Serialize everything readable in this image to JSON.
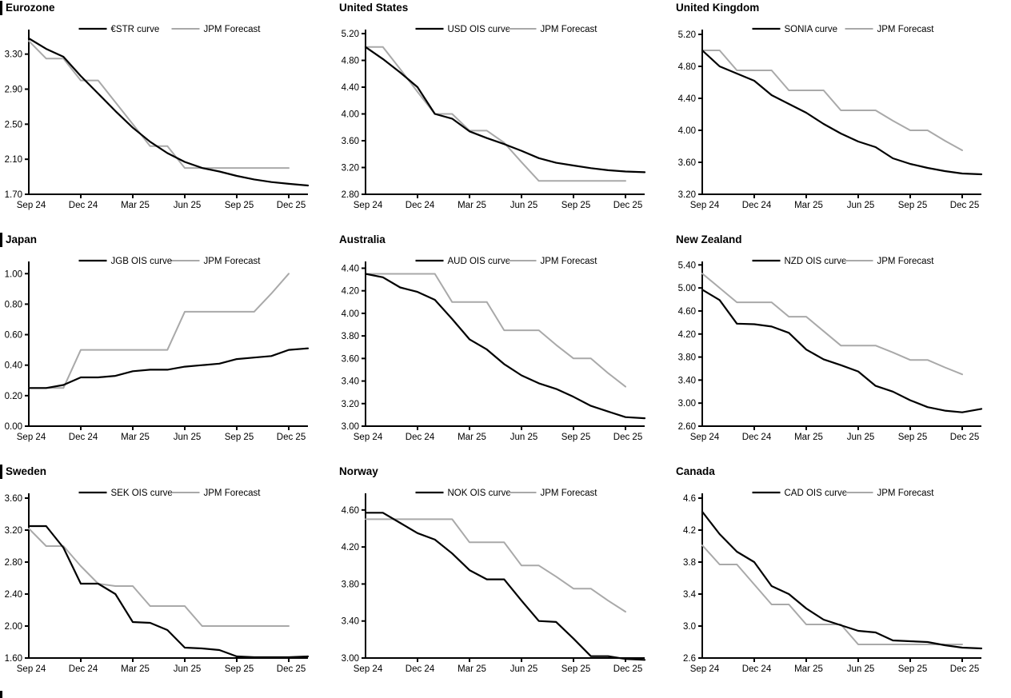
{
  "page": {
    "background": "#ffffff",
    "description": "3x3 grid of central bank policy rate curve charts vs JPM forecasts"
  },
  "colors": {
    "market": "#000000",
    "forecast": "#a9a9a9",
    "axis": "#000000",
    "text": "#000000"
  },
  "x_axis": {
    "months": [
      "Sep 24",
      "Oct 24",
      "Nov 24",
      "Dec 24",
      "Jan 25",
      "Feb 25",
      "Mar 25",
      "Apr 25",
      "May 25",
      "Jun 25",
      "Jul 25",
      "Aug 25",
      "Sep 25",
      "Oct 25",
      "Nov 25",
      "Dec 25"
    ],
    "tick_labels": [
      "Sep 24",
      "Dec 24",
      "Mar 25",
      "Jun 25",
      "Sep 25",
      "Dec 25"
    ],
    "tick_indices": [
      0,
      3,
      6,
      9,
      12,
      15
    ]
  },
  "chart_data": [
    {
      "type": "line",
      "title": "Eurozone",
      "title_bar": true,
      "legend": [
        "€STR curve",
        "JPM Forecast"
      ],
      "ylim": [
        1.7,
        3.58
      ],
      "y_ticks": [
        1.7,
        2.1,
        2.5,
        2.9,
        3.3
      ],
      "y_tick_labels": [
        "1.70",
        "2.10",
        "2.50",
        "2.90",
        "3.30"
      ],
      "series": [
        {
          "name": "€STR curve",
          "role": "market",
          "values": [
            3.48,
            3.36,
            3.27,
            3.05,
            2.85,
            2.65,
            2.46,
            2.3,
            2.17,
            2.07,
            2.0,
            1.96,
            1.91,
            1.87,
            1.84,
            1.82
          ],
          "tail": 1.8
        },
        {
          "name": "JPM Forecast",
          "role": "forecast",
          "values": [
            3.45,
            3.25,
            3.25,
            3.0,
            3.0,
            2.75,
            2.5,
            2.25,
            2.25,
            2.0,
            2.0,
            2.0,
            2.0,
            2.0,
            2.0,
            2.0
          ]
        }
      ]
    },
    {
      "type": "line",
      "title": "United States",
      "title_bar": false,
      "legend": [
        "USD OIS curve",
        "JPM Forecast"
      ],
      "ylim": [
        2.8,
        5.26
      ],
      "y_ticks": [
        2.8,
        3.2,
        3.6,
        4.0,
        4.4,
        4.8,
        5.2
      ],
      "y_tick_labels": [
        "2.80",
        "3.20",
        "3.60",
        "4.00",
        "4.40",
        "4.80",
        "5.20"
      ],
      "series": [
        {
          "name": "USD OIS curve",
          "role": "market",
          "values": [
            5.0,
            4.82,
            4.62,
            4.4,
            4.0,
            3.93,
            3.74,
            3.64,
            3.55,
            3.45,
            3.34,
            3.27,
            3.23,
            3.19,
            3.16,
            3.14
          ],
          "tail": 3.13
        },
        {
          "name": "JPM Forecast",
          "role": "forecast",
          "values": [
            5.0,
            5.0,
            4.67,
            4.33,
            4.0,
            4.0,
            3.75,
            3.75,
            3.57,
            3.28,
            3.0,
            3.0,
            3.0,
            3.0,
            3.0,
            3.0
          ]
        }
      ]
    },
    {
      "type": "line",
      "title": "United Kingdom",
      "title_bar": false,
      "legend": [
        "SONIA curve",
        "JPM Forecast"
      ],
      "ylim": [
        3.2,
        5.26
      ],
      "y_ticks": [
        3.2,
        3.6,
        4.0,
        4.4,
        4.8,
        5.2
      ],
      "y_tick_labels": [
        "3.20",
        "3.60",
        "4.00",
        "4.40",
        "4.80",
        "5.20"
      ],
      "series": [
        {
          "name": "SONIA curve",
          "role": "market",
          "values": [
            5.0,
            4.8,
            4.71,
            4.62,
            4.44,
            4.33,
            4.22,
            4.08,
            3.96,
            3.86,
            3.79,
            3.65,
            3.58,
            3.53,
            3.49,
            3.46
          ],
          "tail": 3.45
        },
        {
          "name": "JPM Forecast",
          "role": "forecast",
          "values": [
            5.0,
            5.0,
            4.75,
            4.75,
            4.75,
            4.5,
            4.5,
            4.5,
            4.25,
            4.25,
            4.25,
            4.12,
            4.0,
            4.0,
            3.87,
            3.75
          ]
        }
      ]
    },
    {
      "type": "line",
      "title": "Japan",
      "title_bar": true,
      "legend": [
        "JGB OIS curve",
        "JPM Forecast"
      ],
      "ylim": [
        0.0,
        1.08
      ],
      "y_ticks": [
        0.0,
        0.2,
        0.4,
        0.6,
        0.8,
        1.0
      ],
      "y_tick_labels": [
        "0.00",
        "0.20",
        "0.40",
        "0.60",
        "0.80",
        "1.00"
      ],
      "series": [
        {
          "name": "JGB OIS curve",
          "role": "market",
          "values": [
            0.25,
            0.25,
            0.27,
            0.32,
            0.32,
            0.33,
            0.36,
            0.37,
            0.37,
            0.39,
            0.4,
            0.41,
            0.44,
            0.45,
            0.46,
            0.5
          ],
          "tail": 0.51
        },
        {
          "name": "JPM Forecast",
          "role": "forecast",
          "values": [
            0.25,
            0.25,
            0.25,
            0.5,
            0.5,
            0.5,
            0.5,
            0.5,
            0.5,
            0.75,
            0.75,
            0.75,
            0.75,
            0.75,
            0.87,
            1.0
          ]
        }
      ]
    },
    {
      "type": "line",
      "title": "Australia",
      "title_bar": false,
      "legend": [
        "AUD OIS curve",
        "JPM Forecast"
      ],
      "ylim": [
        3.0,
        4.46
      ],
      "y_ticks": [
        3.0,
        3.2,
        3.4,
        3.6,
        3.8,
        4.0,
        4.2,
        4.4
      ],
      "y_tick_labels": [
        "3.00",
        "3.20",
        "3.40",
        "3.60",
        "3.80",
        "4.00",
        "4.20",
        "4.40"
      ],
      "series": [
        {
          "name": "AUD OIS curve",
          "role": "market",
          "values": [
            4.35,
            4.32,
            4.23,
            4.19,
            4.12,
            3.95,
            3.77,
            3.68,
            3.55,
            3.45,
            3.38,
            3.33,
            3.26,
            3.18,
            3.13,
            3.08
          ],
          "tail": 3.07
        },
        {
          "name": "JPM Forecast",
          "role": "forecast",
          "values": [
            4.35,
            4.35,
            4.35,
            4.35,
            4.35,
            4.1,
            4.1,
            4.1,
            3.85,
            3.85,
            3.85,
            3.72,
            3.6,
            3.6,
            3.47,
            3.35
          ]
        }
      ]
    },
    {
      "type": "line",
      "title": "New Zealand",
      "title_bar": false,
      "legend": [
        "NZD OIS curve",
        "JPM Forecast"
      ],
      "ylim": [
        2.6,
        5.46
      ],
      "y_ticks": [
        2.6,
        3.0,
        3.4,
        3.8,
        4.2,
        4.6,
        5.0,
        5.4
      ],
      "y_tick_labels": [
        "2.60",
        "3.00",
        "3.40",
        "3.80",
        "4.20",
        "4.60",
        "5.00",
        "5.40"
      ],
      "series": [
        {
          "name": "NZD OIS curve",
          "role": "market",
          "values": [
            4.97,
            4.79,
            4.38,
            4.37,
            4.33,
            4.22,
            3.93,
            3.76,
            3.66,
            3.55,
            3.3,
            3.2,
            3.05,
            2.93,
            2.87,
            2.84
          ],
          "tail": 2.9
        },
        {
          "name": "JPM Forecast",
          "role": "forecast",
          "values": [
            5.25,
            5.0,
            4.75,
            4.75,
            4.75,
            4.5,
            4.5,
            4.25,
            4.0,
            4.0,
            4.0,
            3.88,
            3.75,
            3.75,
            3.62,
            3.5
          ]
        }
      ]
    },
    {
      "type": "line",
      "title": "Sweden",
      "title_bar": true,
      "legend": [
        "SEK OIS curve",
        "JPM Forecast"
      ],
      "ylim": [
        1.6,
        3.66
      ],
      "y_ticks": [
        1.6,
        2.0,
        2.4,
        2.8,
        3.2,
        3.6
      ],
      "y_tick_labels": [
        "1.60",
        "2.00",
        "2.40",
        "2.80",
        "3.20",
        "3.60"
      ],
      "series": [
        {
          "name": "SEK OIS curve",
          "role": "market",
          "values": [
            3.25,
            3.25,
            2.98,
            2.53,
            2.53,
            2.4,
            2.05,
            2.04,
            1.95,
            1.73,
            1.72,
            1.7,
            1.62,
            1.61,
            1.61,
            1.61
          ],
          "tail": 1.62
        },
        {
          "name": "JPM Forecast",
          "role": "forecast",
          "values": [
            3.22,
            3.0,
            3.0,
            2.75,
            2.53,
            2.5,
            2.5,
            2.25,
            2.25,
            2.25,
            2.0,
            2.0,
            2.0,
            2.0,
            2.0,
            2.0
          ]
        }
      ]
    },
    {
      "type": "line",
      "title": "Norway",
      "title_bar": false,
      "legend": [
        "NOK OIS curve",
        "JPM Forecast"
      ],
      "ylim": [
        3.0,
        4.78
      ],
      "y_ticks": [
        3.0,
        3.4,
        3.8,
        4.2,
        4.6
      ],
      "y_tick_labels": [
        "3.00",
        "3.40",
        "3.80",
        "4.20",
        "4.60"
      ],
      "series": [
        {
          "name": "NOK OIS curve",
          "role": "market",
          "values": [
            4.57,
            4.57,
            4.46,
            4.35,
            4.28,
            4.13,
            3.95,
            3.85,
            3.85,
            3.62,
            3.4,
            3.39,
            3.21,
            3.02,
            3.02,
            2.99
          ],
          "tail": 2.98
        },
        {
          "name": "JPM Forecast",
          "role": "forecast",
          "values": [
            4.5,
            4.5,
            4.5,
            4.5,
            4.5,
            4.5,
            4.25,
            4.25,
            4.25,
            4.0,
            4.0,
            3.88,
            3.75,
            3.75,
            3.62,
            3.5
          ]
        }
      ]
    },
    {
      "type": "line",
      "title": "Canada",
      "title_bar": false,
      "legend": [
        "CAD OIS curve",
        "JPM Forecast"
      ],
      "ylim": [
        2.6,
        4.66
      ],
      "y_ticks": [
        2.6,
        3.0,
        3.4,
        3.8,
        4.2,
        4.6
      ],
      "y_tick_labels": [
        "2.6",
        "3.0",
        "3.4",
        "3.8",
        "4.2",
        "4.6"
      ],
      "series": [
        {
          "name": "CAD OIS curve",
          "role": "market",
          "values": [
            4.43,
            4.15,
            3.93,
            3.8,
            3.5,
            3.4,
            3.22,
            3.08,
            3.01,
            2.94,
            2.92,
            2.82,
            2.81,
            2.8,
            2.76,
            2.73
          ],
          "tail": 2.72
        },
        {
          "name": "JPM Forecast",
          "role": "forecast",
          "values": [
            4.01,
            3.77,
            3.77,
            3.52,
            3.27,
            3.27,
            3.02,
            3.02,
            3.02,
            2.77,
            2.77,
            2.77,
            2.77,
            2.77,
            2.77,
            2.77
          ]
        }
      ]
    }
  ]
}
